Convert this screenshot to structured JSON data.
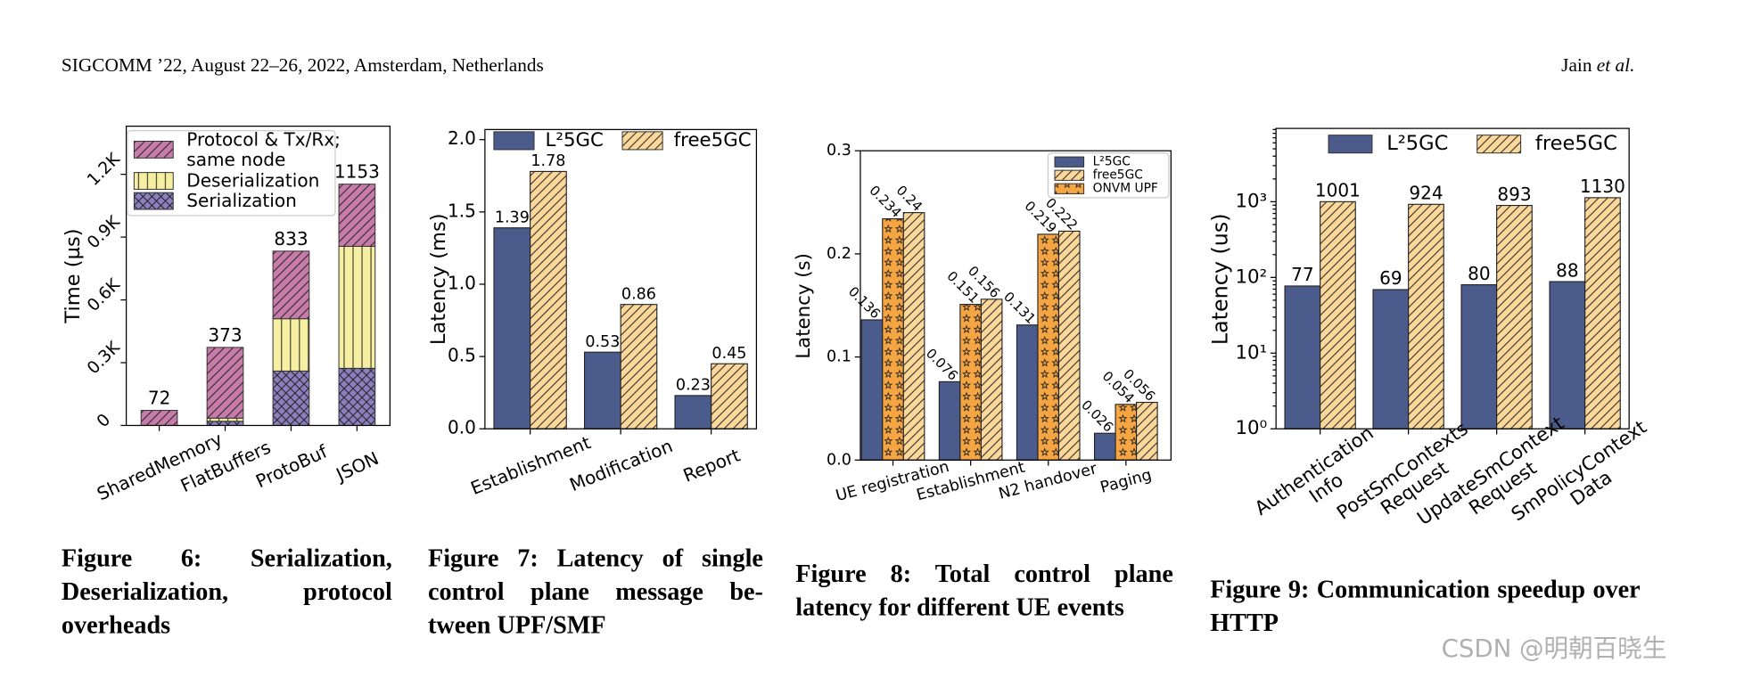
{
  "header": {
    "venue": "SIGCOMM ’22, August 22–26, 2022, Amsterdam, Netherlands",
    "authors": [
      "Jain",
      "et al."
    ]
  },
  "chart_data": [
    {
      "type": "bar",
      "stacked": true,
      "ylabel": "Time (µs)",
      "categories": [
        "SharedMemory",
        "FlatBuffers",
        "ProtoBuf",
        "JSON"
      ],
      "series": [
        {
          "name": "Serialization",
          "color": "#8b7fbe",
          "hatch": "x",
          "values": [
            0,
            20,
            260,
            273
          ]
        },
        {
          "name": "Deserialization",
          "color": "#f6efa2",
          "hatch": "|",
          "values": [
            0,
            15,
            250,
            583
          ]
        },
        {
          "name": "Protocol & Tx/Rx; same node",
          "color": "#c77ba9",
          "hatch": "/",
          "values": [
            72,
            338,
            323,
            297
          ]
        }
      ],
      "totals": [
        72,
        373,
        833,
        1153
      ],
      "ylim": [
        0,
        1430
      ],
      "yticks": [
        0,
        {
          "value": 300,
          "label": "0.3K"
        },
        {
          "value": 600,
          "label": "0.6K"
        },
        {
          "value": 900,
          "label": "0.9K"
        },
        {
          "value": 1200,
          "label": "1.2K"
        }
      ],
      "legend": "upper left"
    },
    {
      "type": "bar",
      "stacked": false,
      "ylabel": "Latency (ms)",
      "categories": [
        "Establishment",
        "Modification",
        "Report"
      ],
      "series": [
        {
          "name": "L²5GC",
          "color": "#4b5b8c",
          "hatch": null,
          "values": [
            1.39,
            0.53,
            0.23
          ]
        },
        {
          "name": "free5GC",
          "color": "#fcd79a",
          "hatch": "/",
          "values": [
            1.78,
            0.86,
            0.45
          ]
        }
      ],
      "ylim": [
        0,
        2.07
      ],
      "yticks": [
        {
          "value": 0,
          "label": "0.0"
        },
        0.5,
        {
          "value": 1,
          "label": "1.0"
        },
        1.5,
        {
          "value": 2,
          "label": "2.0"
        }
      ],
      "legend": "upper center"
    },
    {
      "type": "bar",
      "stacked": false,
      "ylabel": "Latency (s)",
      "categories": [
        "UE registration",
        "Establishment",
        "N2 handover",
        "Paging"
      ],
      "series": [
        {
          "name": "L²5GC",
          "color": "#4b5b8c",
          "hatch": null,
          "values": [
            0.136,
            0.076,
            0.131,
            0.026
          ]
        },
        {
          "name": "ONVM UPF",
          "color": "#f5a542",
          "hatch": "*",
          "values": [
            0.234,
            0.151,
            0.219,
            0.054
          ]
        },
        {
          "name": "free5GC",
          "color": "#fcd79a",
          "hatch": "/",
          "values": [
            0.24,
            0.156,
            0.222,
            0.056
          ]
        }
      ],
      "ylim": [
        0,
        0.3
      ],
      "yticks": [
        {
          "value": 0,
          "label": "0.0"
        },
        0.1,
        0.2,
        0.3
      ],
      "legend": "upper right"
    },
    {
      "type": "bar",
      "stacked": false,
      "ylog": true,
      "ylabel": "Latency (us)",
      "categories": [
        "Authentication\nInfo",
        "PostSmContexts\nRequest",
        "UpdateSmContext\nRequest",
        "SmPolicyContext\nData"
      ],
      "series": [
        {
          "name": "L²5GC",
          "color": "#4b5b8c",
          "hatch": null,
          "values": [
            77,
            69,
            80,
            88
          ]
        },
        {
          "name": "free5GC",
          "color": "#fcd79a",
          "hatch": "/",
          "values": [
            1001,
            924,
            893,
            1130
          ]
        }
      ],
      "ylim": [
        1,
        9300
      ],
      "yticks": [
        {
          "value": 1,
          "label": "10⁰"
        },
        {
          "value": 10,
          "label": "10¹"
        },
        {
          "value": 100,
          "label": "10²"
        },
        {
          "value": 1000,
          "label": "10³"
        }
      ],
      "legend": "upper center"
    }
  ],
  "captions": [
    "Figure 6: Serialization, Deserialization, protocol overheads",
    "Figure 7: Latency of single control plane message be-tween UPF/SMF",
    "Figure 8: Total control plane latency for different UE events",
    "Figure 9: Communication speedup over HTTP"
  ],
  "watermark": "CSDN @明朝百晓生"
}
